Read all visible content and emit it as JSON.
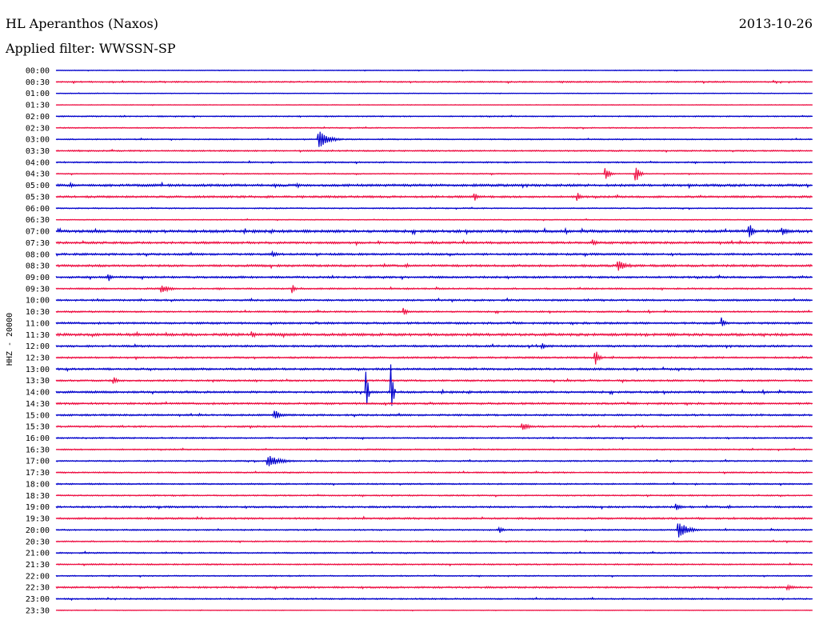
{
  "header": {
    "station": "HL Aperanthos (Naxos)",
    "date": "2013-10-26",
    "filter": "Applied filter: WWSSN-SP"
  },
  "chart_data": {
    "type": "line",
    "title": "HL Aperanthos (Naxos)",
    "ylabel": "HHZ - 20000",
    "colors": [
      "#0000cc",
      "#ee1144"
    ],
    "rows": [
      "00:00",
      "00:30",
      "01:00",
      "01:30",
      "02:00",
      "02:30",
      "03:00",
      "03:30",
      "04:00",
      "04:30",
      "05:00",
      "05:30",
      "06:00",
      "06:30",
      "07:00",
      "07:30",
      "08:00",
      "08:30",
      "09:00",
      "09:30",
      "10:00",
      "10:30",
      "11:00",
      "11:30",
      "12:00",
      "12:30",
      "13:00",
      "13:30",
      "14:00",
      "14:30",
      "15:00",
      "15:30",
      "16:00",
      "16:30",
      "17:00",
      "17:30",
      "18:00",
      "18:30",
      "19:00",
      "19:30",
      "20:00",
      "20:30",
      "21:00",
      "21:30",
      "22:00",
      "22:30",
      "23:00",
      "23:30"
    ],
    "noise": [
      0.3,
      0.6,
      0.3,
      0.3,
      0.5,
      0.5,
      0.5,
      0.6,
      0.6,
      0.5,
      1.1,
      0.9,
      0.5,
      0.4,
      1.2,
      1.0,
      0.9,
      1.0,
      0.9,
      0.7,
      0.8,
      0.7,
      0.9,
      1.2,
      0.9,
      0.8,
      0.9,
      0.8,
      0.9,
      0.9,
      0.8,
      0.8,
      0.6,
      0.6,
      0.6,
      0.6,
      0.6,
      0.6,
      0.8,
      0.8,
      0.6,
      0.6,
      0.6,
      0.6,
      0.5,
      0.8,
      0.6,
      0.3
    ],
    "events": [
      {
        "row": 6,
        "minute": 10.4,
        "amplitude": 12,
        "duration": 1.0
      },
      {
        "row": 9,
        "minute": 21.8,
        "amplitude": 9,
        "duration": 0.35
      },
      {
        "row": 9,
        "minute": 23.0,
        "amplitude": 13,
        "duration": 0.3
      },
      {
        "row": 10,
        "minute": 0.6,
        "amplitude": 3,
        "duration": 0.4
      },
      {
        "row": 11,
        "minute": 16.6,
        "amplitude": 6,
        "duration": 0.25
      },
      {
        "row": 11,
        "minute": 20.7,
        "amplitude": 6,
        "duration": 0.25
      },
      {
        "row": 14,
        "minute": 27.5,
        "amplitude": 10,
        "duration": 0.35
      },
      {
        "row": 14,
        "minute": 28.8,
        "amplitude": 6,
        "duration": 0.5
      },
      {
        "row": 15,
        "minute": 21.3,
        "amplitude": 4,
        "duration": 0.5
      },
      {
        "row": 16,
        "minute": 8.6,
        "amplitude": 4,
        "duration": 0.5
      },
      {
        "row": 17,
        "minute": 22.3,
        "amplitude": 7,
        "duration": 0.8
      },
      {
        "row": 18,
        "minute": 2.1,
        "amplitude": 6,
        "duration": 0.25
      },
      {
        "row": 19,
        "minute": 4.2,
        "amplitude": 5,
        "duration": 0.9
      },
      {
        "row": 19,
        "minute": 9.4,
        "amplitude": 6,
        "duration": 0.2
      },
      {
        "row": 21,
        "minute": 13.8,
        "amplitude": 6,
        "duration": 0.25
      },
      {
        "row": 22,
        "minute": 26.4,
        "amplitude": 8,
        "duration": 0.25
      },
      {
        "row": 23,
        "minute": 7.8,
        "amplitude": 4,
        "duration": 0.4
      },
      {
        "row": 24,
        "minute": 19.3,
        "amplitude": 4,
        "duration": 0.3
      },
      {
        "row": 25,
        "minute": 21.4,
        "amplitude": 10,
        "duration": 0.3
      },
      {
        "row": 27,
        "minute": 2.3,
        "amplitude": 5,
        "duration": 0.3
      },
      {
        "row": 28,
        "minute": 12.3,
        "amplitude": 40,
        "duration": 0.15
      },
      {
        "row": 28,
        "minute": 13.3,
        "amplitude": 36,
        "duration": 0.15
      },
      {
        "row": 31,
        "minute": 18.5,
        "amplitude": 5,
        "duration": 0.7
      },
      {
        "row": 30,
        "minute": 8.7,
        "amplitude": 6,
        "duration": 0.6
      },
      {
        "row": 34,
        "minute": 8.4,
        "amplitude": 8,
        "duration": 1.3
      },
      {
        "row": 38,
        "minute": 24.6,
        "amplitude": 4,
        "duration": 0.6
      },
      {
        "row": 40,
        "minute": 24.7,
        "amplitude": 11,
        "duration": 0.9
      },
      {
        "row": 40,
        "minute": 17.6,
        "amplitude": 4,
        "duration": 0.4
      },
      {
        "row": 45,
        "minute": 29.0,
        "amplitude": 3,
        "duration": 0.9
      }
    ]
  }
}
